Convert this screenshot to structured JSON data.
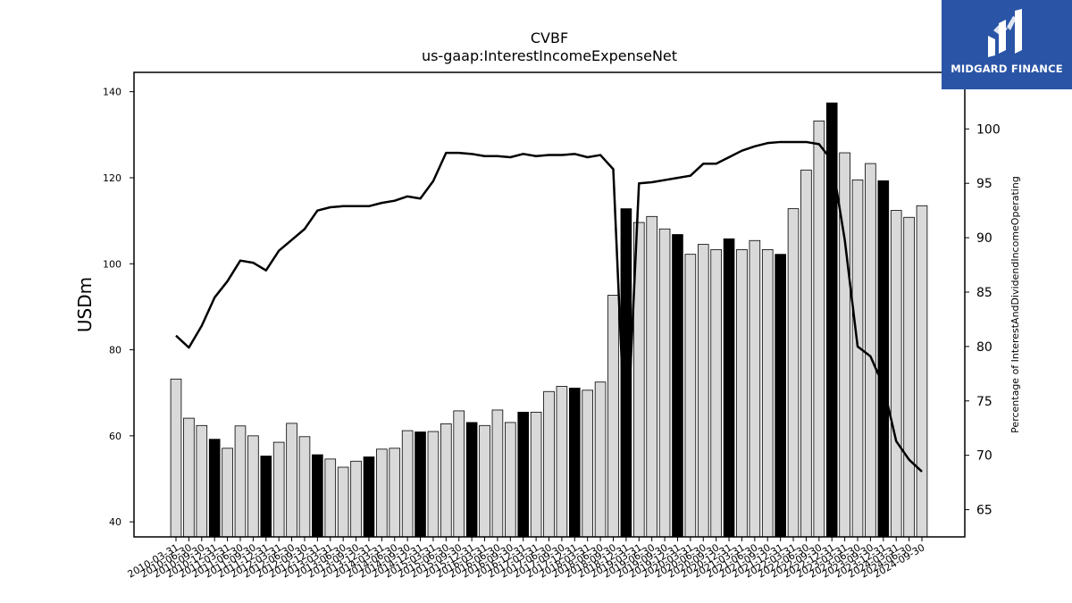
{
  "chart_data": {
    "type": "bar",
    "title": "CVBF",
    "subtitle": "us-gaap:InterestIncomeExpenseNet",
    "ylabel": "USDm",
    "y2label": "Percentage of InterestAndDividendIncomeOperating",
    "ylim": [
      36.5,
      144.5
    ],
    "y2lim": [
      62.5,
      105.2
    ],
    "yticks": [
      40,
      60,
      80,
      100,
      120,
      140
    ],
    "y2ticks": [
      65,
      70,
      75,
      80,
      85,
      90,
      95,
      100
    ],
    "grid": false,
    "bar_colors": {
      "normal": "#d9d9d9",
      "year_end": "#000000"
    },
    "line_color": "#000000",
    "categories": [
      "2010-03-31",
      "2010-06-30",
      "2010-09-30",
      "2010-12-31",
      "2011-03-31",
      "2011-06-30",
      "2011-09-30",
      "2011-12-31",
      "2012-03-31",
      "2012-06-30",
      "2012-09-30",
      "2012-12-31",
      "2013-03-31",
      "2013-06-30",
      "2013-09-30",
      "2013-12-31",
      "2014-03-31",
      "2014-06-30",
      "2014-09-30",
      "2014-12-31",
      "2015-03-31",
      "2015-06-30",
      "2015-09-30",
      "2015-12-31",
      "2016-03-31",
      "2016-06-30",
      "2016-09-30",
      "2016-12-31",
      "2017-03-31",
      "2017-06-30",
      "2017-09-30",
      "2017-12-31",
      "2018-03-31",
      "2018-06-30",
      "2018-09-30",
      "2018-12-31",
      "2019-03-31",
      "2019-06-30",
      "2019-09-30",
      "2019-12-31",
      "2020-03-31",
      "2020-06-30",
      "2020-09-30",
      "2020-12-31",
      "2021-03-31",
      "2021-06-30",
      "2021-09-30",
      "2021-12-31",
      "2022-03-31",
      "2022-06-30",
      "2022-09-30",
      "2022-12-31",
      "2023-03-31",
      "2023-06-30",
      "2023-09-30",
      "2023-12-31",
      "2024-03-31",
      "2024-06-30",
      "2024-09-30"
    ],
    "values": [
      73.2,
      64.1,
      62.4,
      59.2,
      57.1,
      62.3,
      60.0,
      55.3,
      58.5,
      62.9,
      59.8,
      55.6,
      54.6,
      52.7,
      54.1,
      55.1,
      56.9,
      57.1,
      61.2,
      60.9,
      61.0,
      62.8,
      65.8,
      63.1,
      62.4,
      66.0,
      63.1,
      65.5,
      65.5,
      70.3,
      71.5,
      71.1,
      70.6,
      72.5,
      92.7,
      112.8,
      109.6,
      111.0,
      108.1,
      106.8,
      102.2,
      104.5,
      103.3,
      105.8,
      103.3,
      105.4,
      103.3,
      102.2,
      112.8,
      121.8,
      133.2,
      137.4,
      125.8,
      119.5,
      123.3,
      119.3,
      112.4,
      110.8,
      113.5
    ],
    "line_values": [
      81.0,
      79.9,
      81.9,
      84.5,
      86.0,
      87.9,
      87.7,
      87.0,
      88.8,
      89.8,
      90.8,
      92.5,
      92.8,
      92.9,
      92.9,
      92.9,
      93.2,
      93.4,
      93.8,
      93.6,
      95.2,
      97.8,
      97.8,
      97.7,
      97.5,
      97.5,
      97.4,
      97.7,
      97.5,
      97.6,
      97.6,
      97.7,
      97.4,
      97.6,
      96.3,
      69.3,
      95.0,
      95.1,
      95.3,
      95.5,
      95.7,
      96.8,
      96.8,
      97.4,
      98.0,
      98.4,
      98.7,
      98.8,
      98.8,
      98.8,
      98.6,
      97.1,
      89.8,
      80.0,
      79.1,
      76.4,
      71.3,
      69.6,
      68.5
    ]
  },
  "logo": {
    "text": "MIDGARD FINANCE"
  }
}
